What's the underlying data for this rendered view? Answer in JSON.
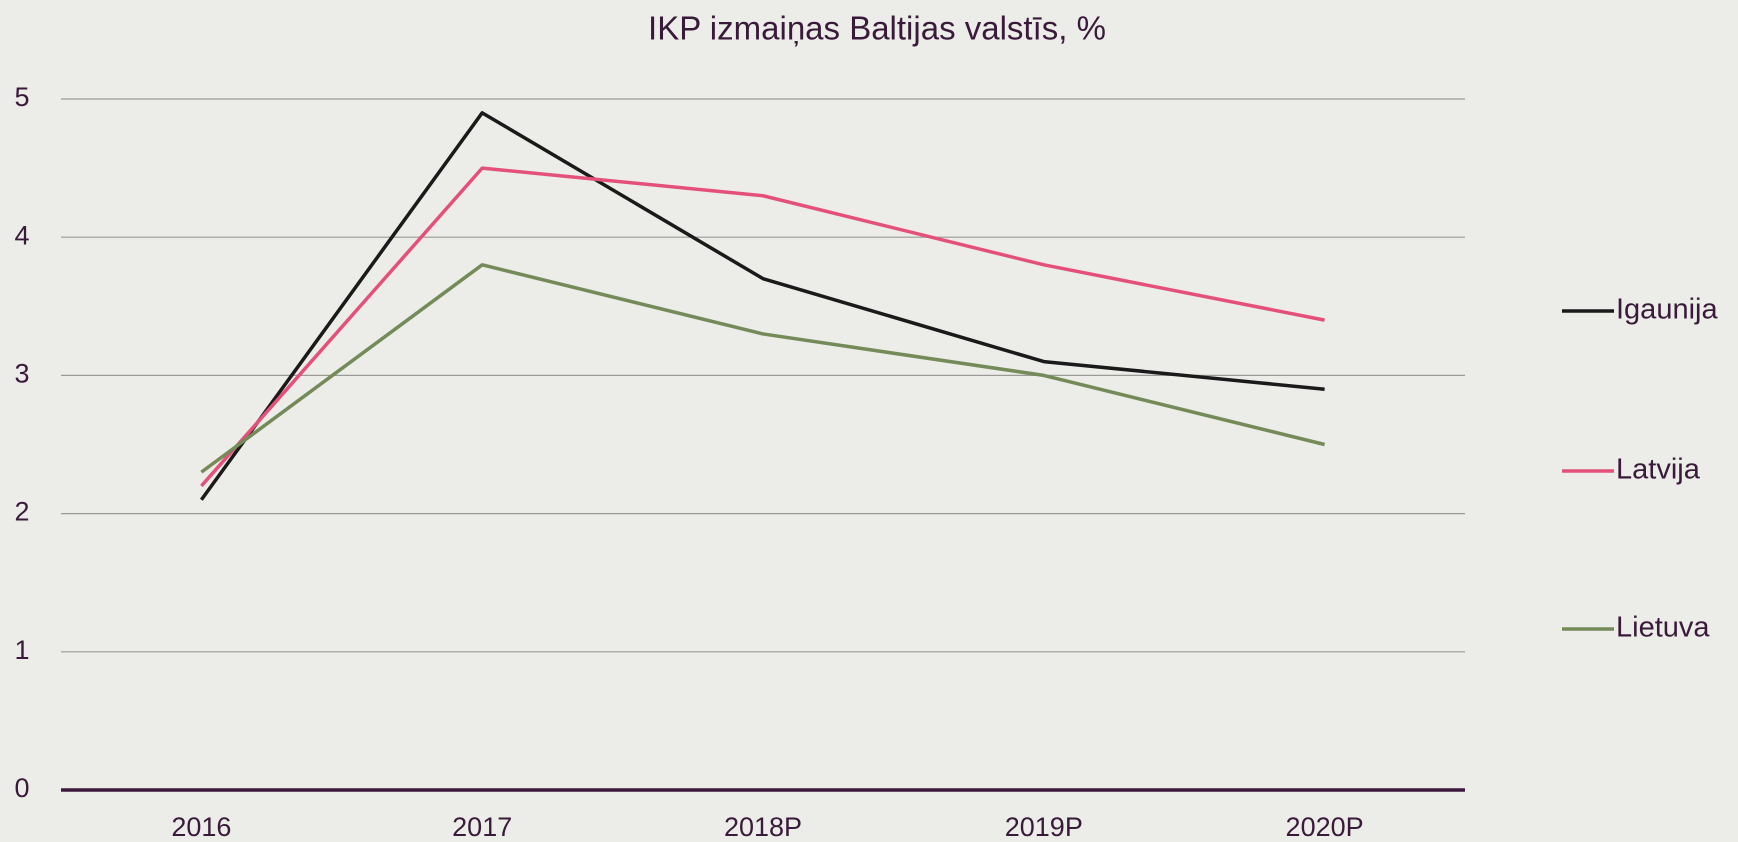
{
  "chart_data": {
    "type": "line",
    "title": "IKP izmaiņas Baltijas valstīs, %",
    "categories": [
      "2016",
      "2017",
      "2018P",
      "2019P",
      "2020P"
    ],
    "series": [
      {
        "name": "Igaunija",
        "color": "#1a1a1a",
        "values": [
          2.1,
          4.9,
          3.7,
          3.1,
          2.9
        ]
      },
      {
        "name": "Latvija",
        "color": "#e4507a",
        "values": [
          2.2,
          4.5,
          4.3,
          3.8,
          3.4
        ]
      },
      {
        "name": "Lietuva",
        "color": "#748a58",
        "values": [
          2.3,
          3.8,
          3.3,
          3.0,
          2.5
        ]
      }
    ],
    "ylim": [
      0,
      5
    ],
    "yticks": [
      0,
      1,
      2,
      3,
      4,
      5
    ],
    "grid": true,
    "legend": "right"
  }
}
